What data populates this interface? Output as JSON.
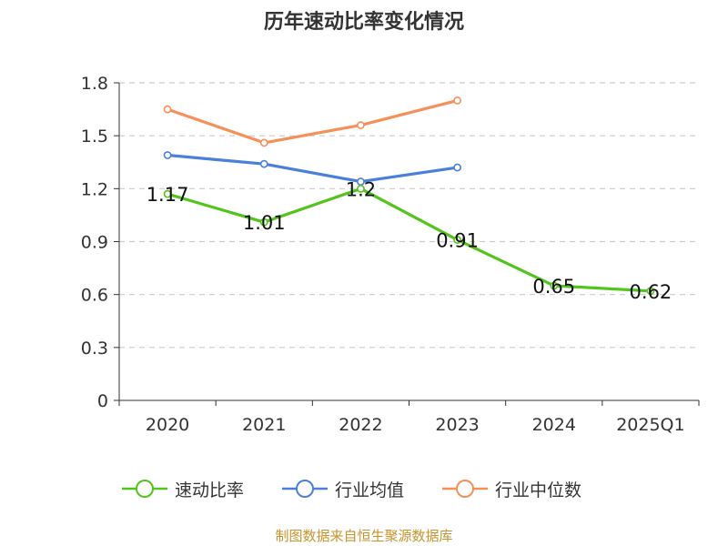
{
  "chart_data": {
    "type": "line",
    "title": "历年速动比率变化情况",
    "categories": [
      "2020",
      "2021",
      "2022",
      "2023",
      "2024",
      "2025Q1"
    ],
    "ylim": [
      0,
      1.8
    ],
    "yticks": [
      "0",
      "0.3",
      "0.6",
      "0.9",
      "1.2",
      "1.5",
      "1.8"
    ],
    "grid": true,
    "legend_position": "bottom",
    "series": [
      {
        "name": "速动比率",
        "color": "#52c41a",
        "values": [
          1.17,
          1.01,
          1.2,
          0.91,
          0.65,
          0.62
        ],
        "labels": [
          "1.17",
          "1.01",
          "1.2",
          "0.91",
          "0.65",
          "0.62"
        ],
        "show_labels": true
      },
      {
        "name": "行业均值",
        "color": "#4a7fdc",
        "values": [
          1.39,
          1.34,
          1.24,
          1.32,
          null,
          null
        ],
        "show_labels": false
      },
      {
        "name": "行业中位数",
        "color": "#f5905a",
        "values": [
          1.65,
          1.46,
          1.56,
          1.7,
          null,
          null
        ],
        "show_labels": false
      }
    ]
  },
  "source_note": "制图数据来自恒生聚源数据库"
}
